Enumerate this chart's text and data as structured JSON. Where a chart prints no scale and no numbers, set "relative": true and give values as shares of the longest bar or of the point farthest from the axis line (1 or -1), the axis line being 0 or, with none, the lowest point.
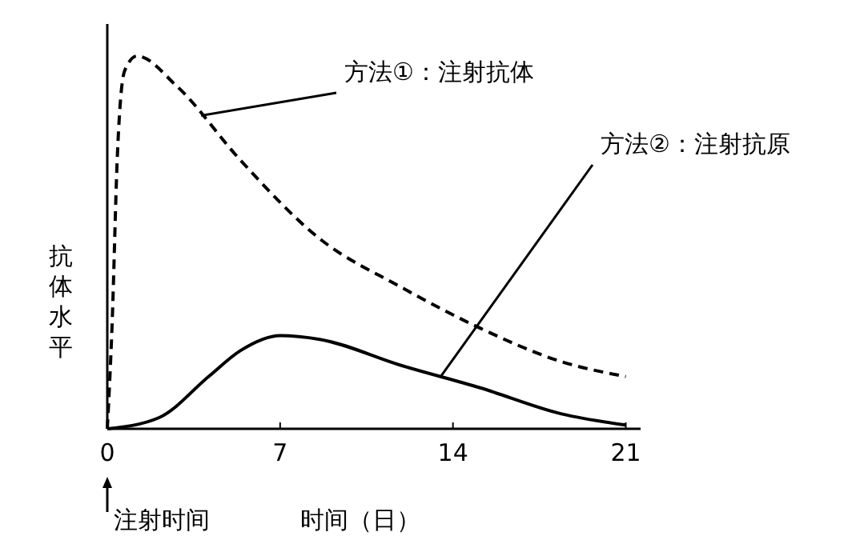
{
  "chart_data": {
    "type": "line",
    "relative": true,
    "xlabel": "时间（日）",
    "ylabel": "抗体水平",
    "xlim": [
      0,
      21.6
    ],
    "xticks": [
      0,
      7,
      14,
      21
    ],
    "tick_labels": "x",
    "grid": false,
    "series": [
      {
        "color": "#000000",
        "line_style": "dashed",
        "x": [
          0,
          0.2,
          0.4,
          0.7,
          1.2,
          2.8,
          5.4,
          8.6,
          11.9,
          15.1,
          18.4,
          21
        ],
        "values": [
          0,
          0.29,
          0.72,
          0.96,
          1,
          0.92,
          0.72,
          0.51,
          0.38,
          0.27,
          0.18,
          0.14
        ]
      },
      {
        "color": "#000000",
        "line_style": "solid",
        "x": [
          0,
          2.1,
          4.1,
          5.4,
          7,
          8.6,
          11.9,
          15.1,
          18.4,
          21
        ],
        "values": [
          0,
          0.03,
          0.14,
          0.21,
          0.25,
          0.24,
          0.17,
          0.11,
          0.04,
          0.01
        ]
      }
    ],
    "annotations": [
      {
        "text": "方法①：注射抗体",
        "x": 3.8,
        "y": 0.84
      },
      {
        "text": "方法②：注射抗原",
        "x": 13.5,
        "y": 0.14
      },
      "注射时间"
    ]
  }
}
